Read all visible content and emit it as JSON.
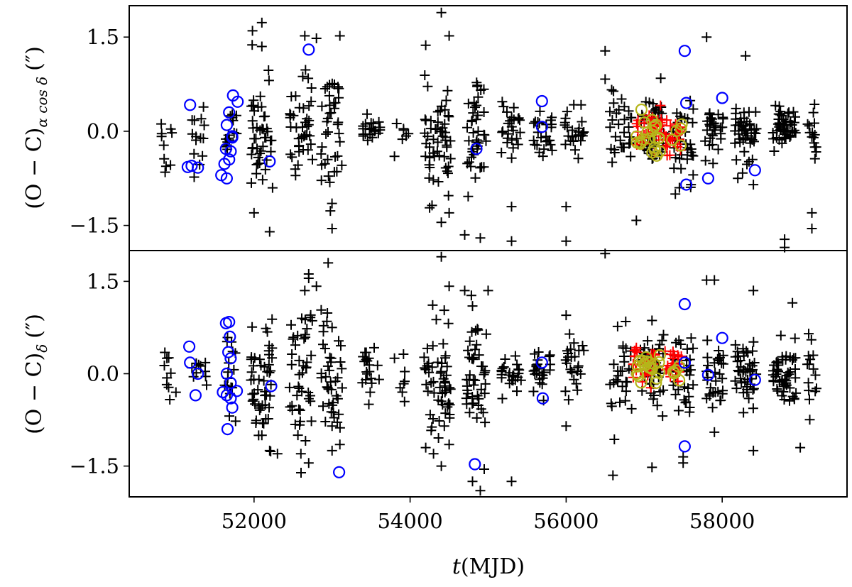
{
  "chart_data": [
    {
      "type": "scatter",
      "panel": "top",
      "ylabel": "(O − C)α cos δ (″)",
      "ylabel_main": "(O − C)",
      "ylabel_sub": "α cos δ",
      "ylabel_unit": "(″)",
      "xlim": [
        50400,
        59600
      ],
      "ylim": [
        -1.9,
        2.0
      ],
      "yticks": [
        {
          "v": 1.5,
          "label": "1.5"
        },
        {
          "v": 0,
          "label": "0.0"
        },
        {
          "v": -1.5,
          "label": "−1.5"
        }
      ],
      "grid": false,
      "legend": "none",
      "series": [
        {
          "marker": "plus",
          "color": "#000000",
          "clusters": [
            {
              "x": 50900,
              "dx": 100,
              "yc": -0.2,
              "sy": 0.25,
              "n": 10
            },
            {
              "x": 51300,
              "dx": 100,
              "yc": -0.1,
              "sy": 0.25,
              "n": 14
            },
            {
              "x": 51700,
              "dx": 80,
              "yc": 0.0,
              "sy": 0.3,
              "n": 16
            },
            {
              "x": 52100,
              "dx": 140,
              "yc": 0.0,
              "sy": 0.45,
              "n": 45
            },
            {
              "x": 52600,
              "dx": 150,
              "yc": 0.0,
              "sy": 0.45,
              "n": 40
            },
            {
              "x": 53000,
              "dx": 140,
              "yc": 0.0,
              "sy": 0.5,
              "n": 40
            },
            {
              "x": 53500,
              "dx": 120,
              "yc": 0.0,
              "sy": 0.15,
              "n": 20
            },
            {
              "x": 53900,
              "dx": 80,
              "yc": -0.05,
              "sy": 0.2,
              "n": 6
            },
            {
              "x": 54350,
              "dx": 170,
              "yc": -0.1,
              "sy": 0.5,
              "n": 55
            },
            {
              "x": 54850,
              "dx": 130,
              "yc": 0.0,
              "sy": 0.45,
              "n": 40
            },
            {
              "x": 55300,
              "dx": 130,
              "yc": 0.0,
              "sy": 0.25,
              "n": 25
            },
            {
              "x": 55700,
              "dx": 120,
              "yc": 0.0,
              "sy": 0.2,
              "n": 25
            },
            {
              "x": 56100,
              "dx": 130,
              "yc": 0.0,
              "sy": 0.25,
              "n": 25
            },
            {
              "x": 56700,
              "dx": 150,
              "yc": 0.0,
              "sy": 0.3,
              "n": 30
            },
            {
              "x": 57100,
              "dx": 150,
              "yc": 0.0,
              "sy": 0.3,
              "n": 40
            },
            {
              "x": 57500,
              "dx": 130,
              "yc": -0.1,
              "sy": 0.35,
              "n": 35
            },
            {
              "x": 57900,
              "dx": 120,
              "yc": 0.0,
              "sy": 0.25,
              "n": 30
            },
            {
              "x": 58300,
              "dx": 140,
              "yc": 0.0,
              "sy": 0.3,
              "n": 45
            },
            {
              "x": 58800,
              "dx": 150,
              "yc": 0.1,
              "sy": 0.2,
              "n": 50
            },
            {
              "x": 59150,
              "dx": 60,
              "yc": 0.0,
              "sy": 0.2,
              "n": 15
            }
          ],
          "points": [
            [
              52100,
              1.73
            ],
            [
              52100,
              1.35
            ],
            [
              52650,
              1.52
            ],
            [
              52800,
              1.48
            ],
            [
              53100,
              1.52
            ],
            [
              54400,
              1.89
            ],
            [
              54500,
              1.52
            ],
            [
              54200,
              1.37
            ],
            [
              56500,
              1.28
            ],
            [
              56500,
              0.83
            ],
            [
              57800,
              1.5
            ],
            [
              58300,
              1.2
            ],
            [
              53800,
              -0.4
            ],
            [
              54250,
              -1.22
            ],
            [
              54400,
              -1.45
            ],
            [
              54500,
              -1.3
            ],
            [
              54700,
              -1.65
            ],
            [
              54900,
              -1.7
            ],
            [
              55300,
              -1.2
            ],
            [
              55300,
              -1.75
            ],
            [
              56000,
              -1.75
            ],
            [
              56000,
              -1.2
            ],
            [
              56900,
              -1.42
            ],
            [
              52200,
              -1.6
            ],
            [
              52000,
              -1.3
            ],
            [
              53000,
              -1.55
            ],
            [
              53000,
              -1.92
            ],
            [
              54200,
              -1.9
            ],
            [
              58800,
              -1.72
            ],
            [
              58800,
              -1.85
            ],
            [
              59150,
              -1.3
            ],
            [
              59150,
              -1.55
            ],
            [
              58400,
              -0.85
            ],
            [
              58200,
              -0.75
            ],
            [
              57600,
              -0.85
            ],
            [
              57400,
              -1.0
            ]
          ]
        },
        {
          "marker": "plus",
          "color": "#ff0000",
          "clusters": [
            {
              "x": 57100,
              "dx": 200,
              "yc": 0.0,
              "sy": 0.18,
              "n": 40
            },
            {
              "x": 57380,
              "dx": 100,
              "yc": -0.1,
              "sy": 0.15,
              "n": 20
            }
          ],
          "points": []
        },
        {
          "marker": "circle",
          "color": "#b5b519",
          "clusters": [
            {
              "x": 57050,
              "dx": 160,
              "yc": -0.12,
              "sy": 0.15,
              "n": 18
            },
            {
              "x": 57400,
              "dx": 80,
              "yc": 0.0,
              "sy": 0.1,
              "n": 5
            }
          ],
          "points": [
            [
              57100,
              0.18
            ],
            [
              57150,
              0.1
            ],
            [
              57200,
              -0.32
            ]
          ]
        },
        {
          "marker": "circle",
          "color": "#0000ff",
          "clusters": [],
          "points": [
            [
              51180,
              0.42
            ],
            [
              51150,
              -0.57
            ],
            [
              51200,
              -0.55
            ],
            [
              51280,
              -0.58
            ],
            [
              51580,
              -0.7
            ],
            [
              51650,
              -0.75
            ],
            [
              51620,
              -0.52
            ],
            [
              51680,
              -0.45
            ],
            [
              51640,
              -0.28
            ],
            [
              51700,
              -0.32
            ],
            [
              51720,
              -0.1
            ],
            [
              51650,
              0.1
            ],
            [
              51680,
              0.3
            ],
            [
              51730,
              0.57
            ],
            [
              51790,
              0.47
            ],
            [
              51720,
              -0.08
            ],
            [
              52200,
              -0.48
            ],
            [
              52700,
              1.3
            ],
            [
              54850,
              -0.28
            ],
            [
              55690,
              0.48
            ],
            [
              55690,
              0.07
            ],
            [
              57520,
              1.28
            ],
            [
              57540,
              0.45
            ],
            [
              57540,
              -0.85
            ],
            [
              57820,
              -0.75
            ],
            [
              58000,
              0.53
            ],
            [
              58420,
              -0.62
            ]
          ]
        }
      ]
    },
    {
      "type": "scatter",
      "panel": "bottom",
      "ylabel": "(O − C)δ (″)",
      "ylabel_main": "(O − C)",
      "ylabel_sub": "δ",
      "ylabel_unit": "(″)",
      "xlabel": "t(MJD)",
      "xlabel_main": "t",
      "xlabel_unit": "(MJD)",
      "xlim": [
        50400,
        59600
      ],
      "ylim": [
        -2.0,
        2.0
      ],
      "xticks": [
        {
          "v": 52000,
          "label": "52000"
        },
        {
          "v": 54000,
          "label": "54000"
        },
        {
          "v": 56000,
          "label": "56000"
        },
        {
          "v": 58000,
          "label": "58000"
        }
      ],
      "yticks": [
        {
          "v": 1.5,
          "label": "1.5"
        },
        {
          "v": 0,
          "label": "0.0"
        },
        {
          "v": -1.5,
          "label": "−1.5"
        }
      ],
      "grid": false,
      "legend": "none",
      "series": [
        {
          "marker": "plus",
          "color": "#000000",
          "clusters": [
            {
              "x": 50900,
              "dx": 100,
              "yc": -0.2,
              "sy": 0.3,
              "n": 10
            },
            {
              "x": 51300,
              "dx": 100,
              "yc": 0.0,
              "sy": 0.2,
              "n": 10
            },
            {
              "x": 51700,
              "dx": 80,
              "yc": 0.0,
              "sy": 0.35,
              "n": 16
            },
            {
              "x": 52100,
              "dx": 140,
              "yc": -0.1,
              "sy": 0.55,
              "n": 50
            },
            {
              "x": 52600,
              "dx": 150,
              "yc": 0.0,
              "sy": 0.6,
              "n": 45
            },
            {
              "x": 53000,
              "dx": 140,
              "yc": 0.0,
              "sy": 0.5,
              "n": 40
            },
            {
              "x": 53500,
              "dx": 120,
              "yc": 0.05,
              "sy": 0.2,
              "n": 20
            },
            {
              "x": 53900,
              "dx": 80,
              "yc": -0.1,
              "sy": 0.2,
              "n": 6
            },
            {
              "x": 54350,
              "dx": 170,
              "yc": -0.05,
              "sy": 0.5,
              "n": 55
            },
            {
              "x": 54850,
              "dx": 130,
              "yc": -0.1,
              "sy": 0.55,
              "n": 45
            },
            {
              "x": 55300,
              "dx": 130,
              "yc": 0.0,
              "sy": 0.15,
              "n": 25
            },
            {
              "x": 55700,
              "dx": 120,
              "yc": 0.0,
              "sy": 0.2,
              "n": 25
            },
            {
              "x": 56100,
              "dx": 130,
              "yc": 0.05,
              "sy": 0.25,
              "n": 25
            },
            {
              "x": 56700,
              "dx": 150,
              "yc": -0.1,
              "sy": 0.35,
              "n": 30
            },
            {
              "x": 57100,
              "dx": 150,
              "yc": 0.0,
              "sy": 0.3,
              "n": 40
            },
            {
              "x": 57500,
              "dx": 130,
              "yc": 0.0,
              "sy": 0.35,
              "n": 35
            },
            {
              "x": 57900,
              "dx": 120,
              "yc": 0.0,
              "sy": 0.25,
              "n": 30
            },
            {
              "x": 58300,
              "dx": 140,
              "yc": 0.0,
              "sy": 0.3,
              "n": 45
            },
            {
              "x": 58800,
              "dx": 150,
              "yc": 0.0,
              "sy": 0.25,
              "n": 50
            },
            {
              "x": 59150,
              "dx": 60,
              "yc": 0.1,
              "sy": 0.25,
              "n": 15
            }
          ],
          "points": [
            [
              52650,
              1.35
            ],
            [
              52700,
              1.55
            ],
            [
              52700,
              1.62
            ],
            [
              52800,
              1.42
            ],
            [
              52950,
              1.8
            ],
            [
              53000,
              0.75
            ],
            [
              54400,
              1.9
            ],
            [
              54500,
              1.42
            ],
            [
              54700,
              1.35
            ],
            [
              54800,
              1.1
            ],
            [
              55000,
              1.35
            ],
            [
              56500,
              1.95
            ],
            [
              56000,
              0.95
            ],
            [
              57800,
              1.52
            ],
            [
              57900,
              1.52
            ],
            [
              58400,
              1.35
            ],
            [
              58900,
              1.15
            ],
            [
              52100,
              -1.0
            ],
            [
              52200,
              -1.25
            ],
            [
              52300,
              -1.3
            ],
            [
              52600,
              -1.3
            ],
            [
              52700,
              -1.45
            ],
            [
              53000,
              -1.25
            ],
            [
              53100,
              -1.15
            ],
            [
              53000,
              -0.85
            ],
            [
              54200,
              -1.2
            ],
            [
              54300,
              -1.3
            ],
            [
              54400,
              -1.5
            ],
            [
              54500,
              -1.15
            ],
            [
              54800,
              -1.75
            ],
            [
              54900,
              -1.9
            ],
            [
              54950,
              -1.55
            ],
            [
              55300,
              -1.75
            ],
            [
              56000,
              -0.85
            ],
            [
              56600,
              -1.65
            ],
            [
              57100,
              -1.52
            ],
            [
              57500,
              -1.35
            ],
            [
              57500,
              -1.45
            ],
            [
              57900,
              -0.95
            ],
            [
              58400,
              -1.25
            ],
            [
              59000,
              -1.2
            ],
            [
              53800,
              0.25
            ],
            [
              53900,
              -0.3
            ]
          ]
        },
        {
          "marker": "plus",
          "color": "#ff0000",
          "clusters": [
            {
              "x": 57000,
              "dx": 150,
              "yc": 0.15,
              "sy": 0.15,
              "n": 30
            },
            {
              "x": 57380,
              "dx": 120,
              "yc": 0.15,
              "sy": 0.12,
              "n": 20
            }
          ],
          "points": []
        },
        {
          "marker": "circle",
          "color": "#b5b519",
          "clusters": [
            {
              "x": 57050,
              "dx": 150,
              "yc": 0.1,
              "sy": 0.12,
              "n": 18
            },
            {
              "x": 57400,
              "dx": 80,
              "yc": 0.05,
              "sy": 0.1,
              "n": 5
            }
          ],
          "points": [
            [
              57150,
              -0.15
            ],
            [
              57200,
              0.3
            ]
          ]
        },
        {
          "marker": "circle",
          "color": "#0000ff",
          "clusters": [],
          "points": [
            [
              51170,
              0.44
            ],
            [
              51180,
              0.18
            ],
            [
              51250,
              -0.35
            ],
            [
              51280,
              0.0
            ],
            [
              51600,
              -0.3
            ],
            [
              51640,
              0.82
            ],
            [
              51650,
              -0.35
            ],
            [
              51680,
              0.84
            ],
            [
              51690,
              0.6
            ],
            [
              51670,
              0.35
            ],
            [
              51700,
              0.25
            ],
            [
              51700,
              -0.4
            ],
            [
              51720,
              -0.55
            ],
            [
              51650,
              0.0
            ],
            [
              51780,
              -0.28
            ],
            [
              51660,
              -0.9
            ],
            [
              51700,
              -0.15
            ],
            [
              52220,
              -0.2
            ],
            [
              53090,
              -1.6
            ],
            [
              54830,
              -1.47
            ],
            [
              55690,
              0.18
            ],
            [
              55700,
              -0.4
            ],
            [
              57520,
              1.13
            ],
            [
              57520,
              0.18
            ],
            [
              57520,
              -1.18
            ],
            [
              57820,
              -0.02
            ],
            [
              58000,
              0.58
            ],
            [
              58420,
              -0.1
            ]
          ]
        }
      ]
    }
  ]
}
